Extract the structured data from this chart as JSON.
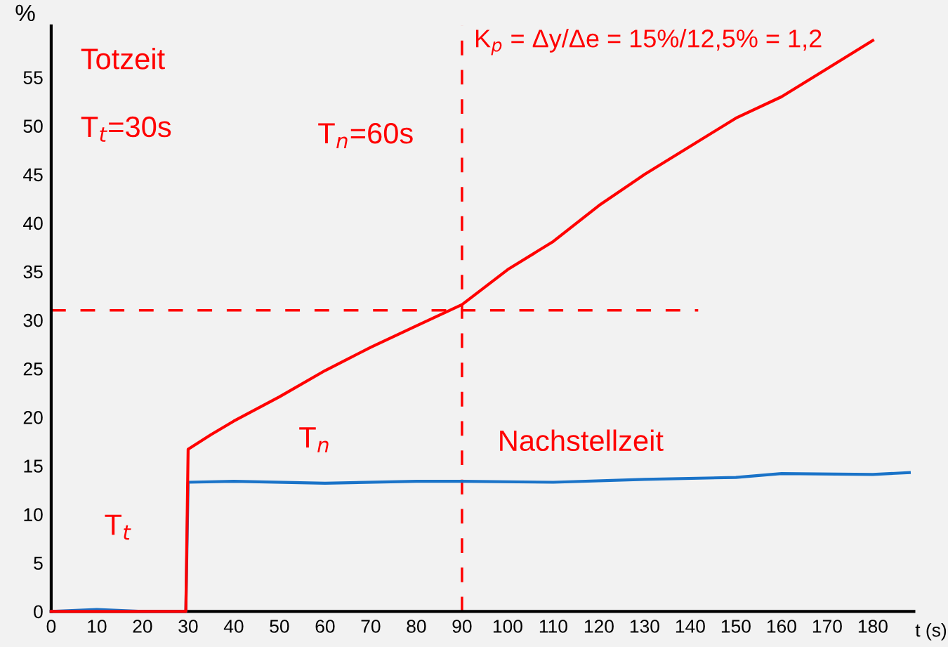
{
  "chart_data": {
    "type": "line",
    "ylabel": "%",
    "xlabel": "t (s)",
    "xlim": [
      0,
      189
    ],
    "xticks": [
      0,
      10,
      20,
      30,
      40,
      50,
      60,
      70,
      80,
      90,
      100,
      110,
      120,
      130,
      140,
      150,
      160,
      170,
      180
    ],
    "ylim": [
      0,
      60.3
    ],
    "yticks": [
      0,
      5,
      10,
      15,
      20,
      25,
      30,
      35,
      40,
      45,
      50,
      55
    ],
    "grid": false,
    "legend": false,
    "series": [
      {
        "color": "#ff0000",
        "x": [
          0,
          10,
          20,
          29.5,
          30,
          35,
          40,
          50,
          60,
          70,
          80,
          90,
          100,
          110,
          120,
          130,
          140,
          150,
          160,
          170,
          180
        ],
        "values": [
          0,
          0,
          0,
          0,
          16.7,
          18.2,
          19.6,
          22.1,
          24.8,
          27.2,
          29.4,
          31.6,
          35.2,
          38.1,
          41.8,
          45,
          47.9,
          50.8,
          53,
          55.9,
          58.8
        ]
      },
      {
        "color": "#1a73c8",
        "x": [
          0,
          10,
          20,
          29.5,
          30,
          40,
          60,
          80,
          90,
          110,
          130,
          150,
          160,
          180,
          188
        ],
        "values": [
          0,
          0.2,
          0,
          0,
          13.3,
          13.4,
          13.2,
          13.4,
          13.4,
          13.3,
          13.6,
          13.8,
          14.2,
          14.1,
          14.3
        ]
      }
    ],
    "ref_lines": [
      {
        "axis": "y",
        "value": 31,
        "color": "#ff0000",
        "line_style": "dashed"
      },
      {
        "axis": "x",
        "value": 90,
        "color": "#ff0000",
        "line_style": "dashed"
      }
    ],
    "annotations": [
      "Totzeit",
      "T$_{t}$=30s",
      "T$_{n}$=60s",
      "K$_{p}$ = Δy/Δe = 15%/12,5% = 1,2",
      "T$_{t}$",
      "T$_{n}$",
      "Nachstellzeit"
    ]
  }
}
